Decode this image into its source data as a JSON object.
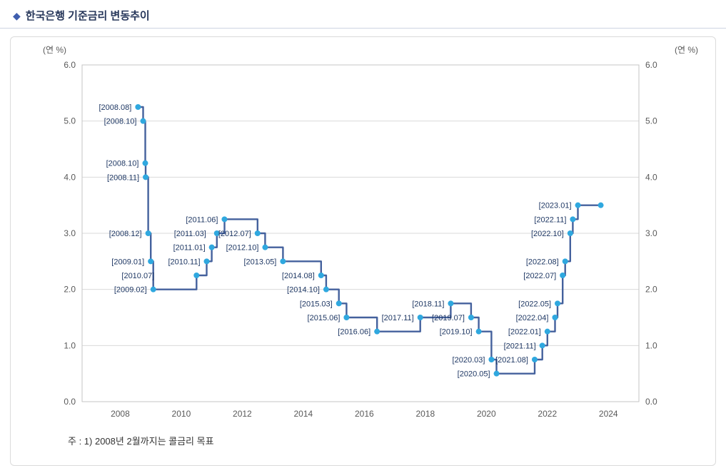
{
  "header": {
    "bullet": "◆",
    "title": "한국은행 기준금리 변동추이"
  },
  "chart_data": {
    "type": "line",
    "subtype": "step",
    "title": "한국은행 기준금리 변동추이",
    "unit_label": "(연 %)",
    "note": "주 : 1) 2008년 2월까지는 콜금리 목표",
    "ylim": [
      0.0,
      6.0
    ],
    "xlim": [
      2006.75,
      2025.0
    ],
    "y_ticks": [
      "6.0",
      "5.0",
      "4.0",
      "3.0",
      "2.0",
      "1.0",
      "0.0"
    ],
    "x_ticks": [
      2008,
      2010,
      2012,
      2014,
      2016,
      2018,
      2020,
      2022,
      2024
    ],
    "grid": "horizontal",
    "legend": "none",
    "colors": {
      "line": "#44619d",
      "marker": "#2fa8df",
      "point_label": "#1f3864",
      "tick_label": "#595959",
      "grid": "#d9d9d9",
      "plot_border": "#c6c6c6"
    },
    "series": [
      {
        "name": "한국은행 기준금리",
        "extend_to": 2023.75,
        "points": [
          {
            "label": "[2008.08]",
            "date": "2008.08",
            "rate": 5.25
          },
          {
            "label": "[2008.10]",
            "date": "2008.10",
            "rate": 5.0
          },
          {
            "label": "[2008.10]",
            "date": "2008.10",
            "rate": 4.25
          },
          {
            "label": "[2008.11]",
            "date": "2008.11",
            "rate": 4.0
          },
          {
            "label": "[2008.12]",
            "date": "2008.12",
            "rate": 3.0
          },
          {
            "label": "[2009.01]",
            "date": "2009.01",
            "rate": 2.5
          },
          {
            "label": "[2009.02]",
            "date": "2009.02",
            "rate": 2.0
          },
          {
            "label": "[2010.07]",
            "date": "2010.07",
            "rate": 2.25,
            "ldx": -50
          },
          {
            "label": "[2010.11]",
            "date": "2010.11",
            "rate": 2.5
          },
          {
            "label": "[2011.01]",
            "date": "2011.01",
            "rate": 2.75
          },
          {
            "label": "[2011.03]",
            "date": "2011.03",
            "rate": 3.0,
            "ldx": -6
          },
          {
            "label": "[2011.06]",
            "date": "2011.06",
            "rate": 3.25
          },
          {
            "label": "[2012.07]",
            "date": "2012.07",
            "rate": 3.0
          },
          {
            "label": "[2012.10]",
            "date": "2012.10",
            "rate": 2.75
          },
          {
            "label": "[2013.05]",
            "date": "2013.05",
            "rate": 2.5
          },
          {
            "label": "[2014.08]",
            "date": "2014.08",
            "rate": 2.25
          },
          {
            "label": "[2014.10]",
            "date": "2014.10",
            "rate": 2.0
          },
          {
            "label": "[2015.03]",
            "date": "2015.03",
            "rate": 1.75
          },
          {
            "label": "[2015.06]",
            "date": "2015.06",
            "rate": 1.5
          },
          {
            "label": "[2016.06]",
            "date": "2016.06",
            "rate": 1.25
          },
          {
            "label": "[2017.11]",
            "date": "2017.11",
            "rate": 1.5
          },
          {
            "label": "[2018.11]",
            "date": "2018.11",
            "rate": 1.75
          },
          {
            "label": "[2019.07]",
            "date": "2019.07",
            "rate": 1.5
          },
          {
            "label": "[2019.10]",
            "date": "2019.10",
            "rate": 1.25
          },
          {
            "label": "[2020.03]",
            "date": "2020.03",
            "rate": 0.75
          },
          {
            "label": "[2020.05]",
            "date": "2020.05",
            "rate": 0.5
          },
          {
            "label": "[2021.08]",
            "date": "2021.08",
            "rate": 0.75
          },
          {
            "label": "[2021.11]",
            "date": "2021.11",
            "rate": 1.0
          },
          {
            "label": "[2022.01]",
            "date": "2022.01",
            "rate": 1.25
          },
          {
            "label": "[2022.04]",
            "date": "2022.04",
            "rate": 1.5
          },
          {
            "label": "[2022.05]",
            "date": "2022.05",
            "rate": 1.75
          },
          {
            "label": "[2022.07]",
            "date": "2022.07",
            "rate": 2.25
          },
          {
            "label": "[2022.08]",
            "date": "2022.08",
            "rate": 2.5
          },
          {
            "label": "[2022.10]",
            "date": "2022.10",
            "rate": 3.0
          },
          {
            "label": "[2022.11]",
            "date": "2022.11",
            "rate": 3.25
          },
          {
            "label": "[2023.01]",
            "date": "2023.01",
            "rate": 3.5
          }
        ]
      }
    ]
  }
}
